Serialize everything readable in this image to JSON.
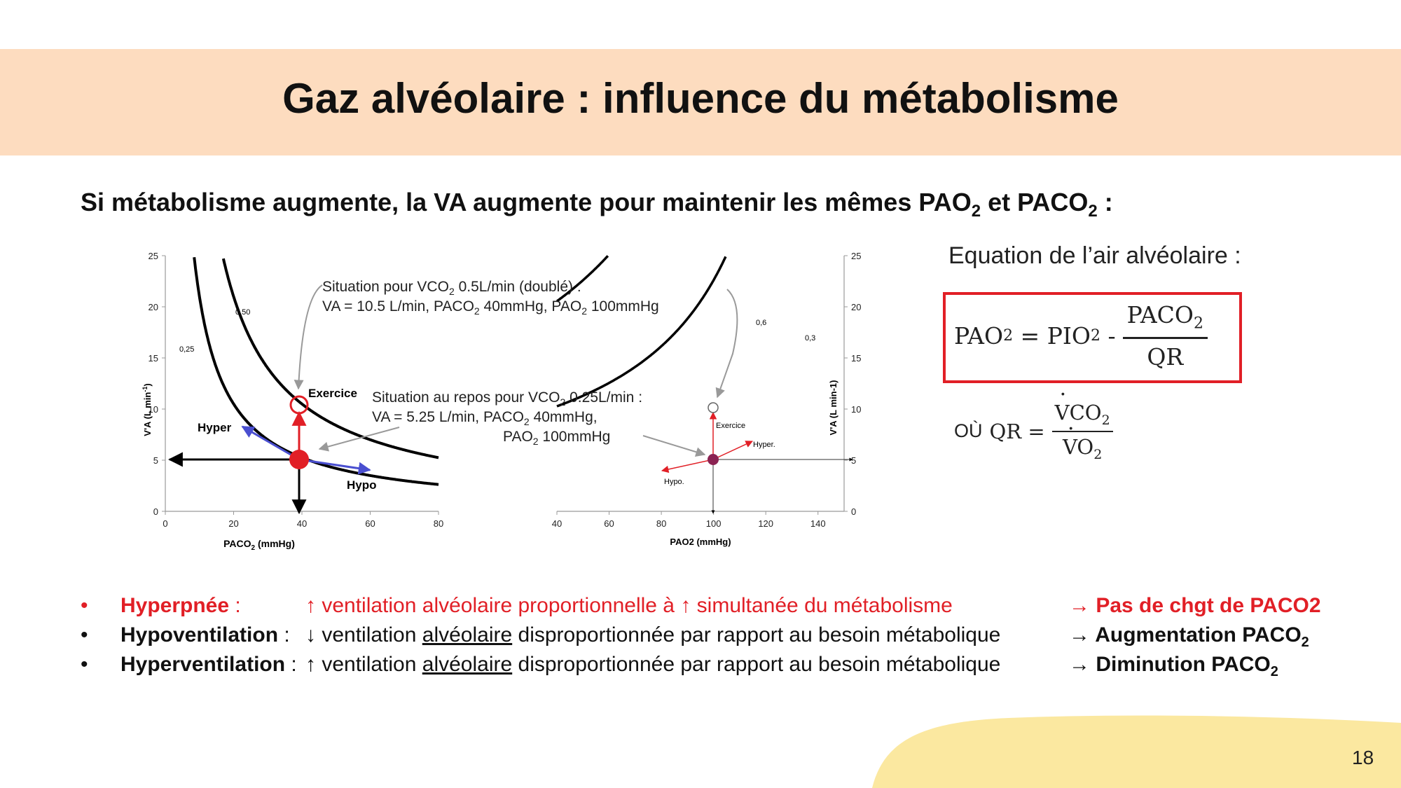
{
  "title": "Gaz alvéolaire : influence du métabolisme",
  "subtitle": {
    "text": "Si métabolisme augmente, la VA augmente pour maintenir les mêmes PAO",
    "sub1": "2",
    "mid": " et PACO",
    "sub2": "2",
    "end": " :"
  },
  "colors": {
    "banner": "#fddcbf",
    "accent_red": "#e11f26",
    "blob": "#fbe8a0",
    "arrow_blue": "#4a4fd0",
    "point_purple": "#8b2252"
  },
  "chart_data": [
    {
      "type": "line",
      "xlabel": "PACO",
      "xlabel_sub": "2",
      "xlabel_unit": " (mmHg)",
      "ylabel": "V'A (L min",
      "ylabel_sup": "-1",
      "ylabel_end": ")",
      "xlim": [
        0,
        80
      ],
      "ylim": [
        0,
        25
      ],
      "x_ticks": [
        "0",
        "20",
        "40",
        "60",
        "80"
      ],
      "y_ticks": [
        "0",
        "5",
        "10",
        "15",
        "20",
        "25"
      ],
      "series": [
        {
          "name": "0,25",
          "vco2": 0.25,
          "k": 210
        },
        {
          "name": "0.50",
          "vco2": 0.5,
          "k": 420
        }
      ],
      "points": [
        {
          "name": "repos",
          "x": 40,
          "y": 5.25
        },
        {
          "name": "Exercice",
          "x": 40,
          "y": 10.5
        }
      ],
      "labels": {
        "exercice": "Exercice",
        "hyper": "Hyper",
        "hypo": "Hypo"
      }
    },
    {
      "type": "line",
      "xlabel": "PAO2 (mmHg)",
      "ylabel": "V'A (L min-1)",
      "xlim": [
        40,
        150
      ],
      "ylim": [
        0,
        25
      ],
      "x_ticks": [
        "40",
        "60",
        "80",
        "100",
        "120",
        "140"
      ],
      "y_ticks": [
        "0",
        "5",
        "10",
        "15",
        "20",
        "25"
      ],
      "series": [
        {
          "name": "0,3",
          "vco2": 0.3,
          "k": 1130
        },
        {
          "name": "0,6",
          "vco2": 0.6,
          "k": 2260
        }
      ],
      "points": [
        {
          "name": "repos",
          "x": 100,
          "y": 5.25
        },
        {
          "name": "Exercice",
          "x": 100,
          "y": 10.5
        }
      ],
      "labels": {
        "exercice": "Exercice",
        "hyper": "Hyper.",
        "hypo": "Hypo."
      }
    }
  ],
  "annotations": {
    "double_l1a": "Situation pour VCO",
    "double_l1sub": "2",
    "double_l1b": " 0.5L/min (doublé) :",
    "double_l2a": "VA = 10.5 L/min, PACO",
    "double_l2sub": "2",
    "double_l2b": " 40mmHg, PAO",
    "double_l2sub2": "2",
    "double_l2c": " 100mmHg",
    "repos_l1a": "Situation au repos pour VCO",
    "repos_l1sub": "2",
    "repos_l1b": " 0.25L/min :",
    "repos_l2a": "VA = 5.25 L/min, PACO",
    "repos_l2sub": "2",
    "repos_l2b": " 40mmHg,",
    "repos_l3a": "PAO",
    "repos_l3sub": "2",
    "repos_l3b": " 100mmHg"
  },
  "equation": {
    "title": "Equation de l’air alvéolaire :",
    "lhs": "PAO",
    "lhs_sub": "2",
    "eq": " = PIO",
    "pio_sub": "2",
    "minus": " -",
    "num": "PACO",
    "num_sub": "2",
    "den": "QR",
    "ou": "OÙ",
    "qr": "QR =",
    "qr_num": "VCO",
    "qr_num_sub": "2",
    "qr_den": "VO",
    "qr_den_sub": "2"
  },
  "bullets": [
    {
      "bullet": "•",
      "term": "Hyperpnée",
      "colon": " :",
      "desc_a": "↑ ventilation alvéolaire proportionnelle à ↑ simultanée du métabolisme",
      "desc_u": "",
      "desc_b": "",
      "result": "→ Pas de chgt de PACO2",
      "result_sub": ""
    },
    {
      "bullet": "•",
      "term": "Hypoventilation",
      "colon": " :",
      "desc_a": "↓ ventilation ",
      "desc_u": "alvéolaire",
      "desc_b": " disproportionnée par rapport au besoin métabolique",
      "result": "→ Augmentation PACO",
      "result_sub": "2"
    },
    {
      "bullet": "•",
      "term": "Hyperventilation",
      "colon": " :",
      "desc_a": "↑ ventilation ",
      "desc_u": "alvéolaire",
      "desc_b": " disproportionnée par rapport au besoin métabolique",
      "result": "→ Diminution PACO",
      "result_sub": "2"
    }
  ],
  "page_number": "18"
}
